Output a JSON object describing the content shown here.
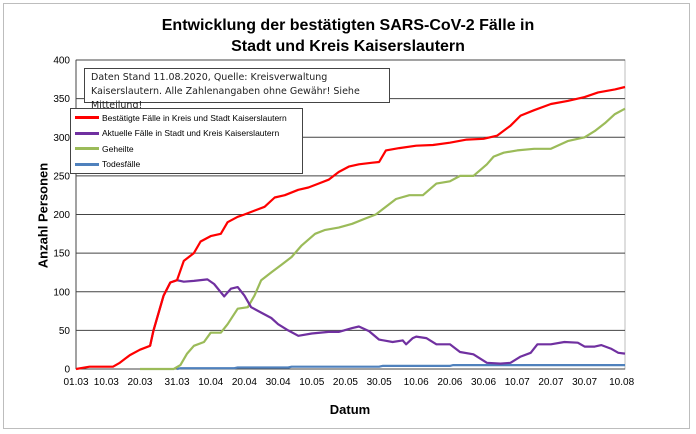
{
  "chart_data": {
    "type": "line",
    "title": "Entwicklung der bestätigten SARS-CoV-2 Fälle in Stadt und Kreis Kaiserslautern",
    "title_lines": [
      "Entwicklung der bestätigten SARS-CoV-2 Fälle in",
      "Stadt und Kreis Kaiserslautern"
    ],
    "annotation_lines": [
      "Daten Stand 11.08.2020, Quelle: Kreisverwaltung",
      "Kaiserslautern. Alle Zahlenangaben ohne Gewähr! Siehe Mitteilung!"
    ],
    "xlabel": "Datum",
    "ylabel": "Anzahl Personen",
    "ylim": [
      0,
      400
    ],
    "yticks": [
      0,
      50,
      100,
      150,
      200,
      250,
      300,
      350,
      400
    ],
    "xticks": [
      "01.03",
      "10.03",
      "20.03",
      "31.03",
      "10.04",
      "20.04",
      "30.04",
      "10.05",
      "20.05",
      "30.05",
      "10.06",
      "20.06",
      "30.06",
      "10.07",
      "20.07",
      "30.07",
      "10.08"
    ],
    "xlim": [
      "01.03",
      "11.08"
    ],
    "grid": "horizontal",
    "legend_position": "top-left",
    "series": [
      {
        "name": "Bestätigte Fälle in Kreis und Stadt Kaiserslautern",
        "color": "#ff0000",
        "points": [
          [
            "01.03",
            0
          ],
          [
            "05.03",
            3
          ],
          [
            "12.03",
            3
          ],
          [
            "14.03",
            8
          ],
          [
            "17.03",
            18
          ],
          [
            "20.03",
            25
          ],
          [
            "23.03",
            30
          ],
          [
            "24.03",
            50
          ],
          [
            "27.03",
            95
          ],
          [
            "29.03",
            112
          ],
          [
            "31.03",
            115
          ],
          [
            "02.04",
            140
          ],
          [
            "05.04",
            150
          ],
          [
            "07.04",
            165
          ],
          [
            "10.04",
            172
          ],
          [
            "13.04",
            175
          ],
          [
            "15.04",
            190
          ],
          [
            "18.04",
            197
          ],
          [
            "20.04",
            200
          ],
          [
            "23.04",
            205
          ],
          [
            "26.04",
            210
          ],
          [
            "29.04",
            222
          ],
          [
            "02.05",
            225
          ],
          [
            "06.05",
            232
          ],
          [
            "09.05",
            235
          ],
          [
            "12.05",
            240
          ],
          [
            "15.05",
            245
          ],
          [
            "18.05",
            255
          ],
          [
            "21.05",
            262
          ],
          [
            "24.05",
            265
          ],
          [
            "28.05",
            267
          ],
          [
            "30.05",
            268
          ],
          [
            "01.06",
            283
          ],
          [
            "05.06",
            286
          ],
          [
            "10.06",
            289
          ],
          [
            "15.06",
            290
          ],
          [
            "20.06",
            293
          ],
          [
            "25.06",
            297
          ],
          [
            "30.06",
            298
          ],
          [
            "04.07",
            302
          ],
          [
            "08.07",
            315
          ],
          [
            "11.07",
            328
          ],
          [
            "15.07",
            335
          ],
          [
            "20.07",
            343
          ],
          [
            "25.07",
            347
          ],
          [
            "30.07",
            352
          ],
          [
            "03.08",
            358
          ],
          [
            "08.08",
            362
          ],
          [
            "11.08",
            365
          ]
        ]
      },
      {
        "name": "Aktuelle Fälle in Stadt und Kreis Kaiserslautern",
        "color": "#7030a0",
        "points": [
          [
            "23.03",
            30
          ],
          [
            "24.03",
            50
          ],
          [
            "27.03",
            95
          ],
          [
            "29.03",
            112
          ],
          [
            "31.03",
            115
          ],
          [
            "02.04",
            113
          ],
          [
            "05.04",
            114
          ],
          [
            "09.04",
            116
          ],
          [
            "11.04",
            110
          ],
          [
            "14.04",
            94
          ],
          [
            "16.04",
            104
          ],
          [
            "18.04",
            106
          ],
          [
            "20.04",
            95
          ],
          [
            "22.04",
            80
          ],
          [
            "25.04",
            73
          ],
          [
            "28.04",
            66
          ],
          [
            "30.04",
            58
          ],
          [
            "03.05",
            50
          ],
          [
            "06.05",
            43
          ],
          [
            "10.05",
            46
          ],
          [
            "15.05",
            48
          ],
          [
            "18.05",
            48
          ],
          [
            "22.05",
            53
          ],
          [
            "24.05",
            55
          ],
          [
            "27.05",
            49
          ],
          [
            "30.05",
            38
          ],
          [
            "03.06",
            35
          ],
          [
            "06.06",
            37
          ],
          [
            "07.06",
            32
          ],
          [
            "09.06",
            40
          ],
          [
            "10.06",
            42
          ],
          [
            "13.06",
            40
          ],
          [
            "16.06",
            32
          ],
          [
            "20.06",
            32
          ],
          [
            "23.06",
            22
          ],
          [
            "27.06",
            19
          ],
          [
            "01.07",
            8
          ],
          [
            "05.07",
            7
          ],
          [
            "08.07",
            8
          ],
          [
            "11.07",
            16
          ],
          [
            "14.07",
            21
          ],
          [
            "16.07",
            32
          ],
          [
            "20.07",
            32
          ],
          [
            "24.07",
            35
          ],
          [
            "28.07",
            34
          ],
          [
            "30.07",
            29
          ],
          [
            "02.08",
            29
          ],
          [
            "04.08",
            31
          ],
          [
            "07.08",
            26
          ],
          [
            "09.08",
            21
          ],
          [
            "11.08",
            20
          ]
        ]
      },
      {
        "name": "Geheilte",
        "color": "#9bbb59",
        "points": [
          [
            "20.03",
            0
          ],
          [
            "30.03",
            0
          ],
          [
            "01.04",
            5
          ],
          [
            "03.04",
            20
          ],
          [
            "05.04",
            30
          ],
          [
            "08.04",
            35
          ],
          [
            "10.04",
            47
          ],
          [
            "13.04",
            47
          ],
          [
            "15.04",
            58
          ],
          [
            "18.04",
            78
          ],
          [
            "21.04",
            80
          ],
          [
            "23.04",
            95
          ],
          [
            "25.04",
            115
          ],
          [
            "28.04",
            125
          ],
          [
            "01.05",
            135
          ],
          [
            "04.05",
            145
          ],
          [
            "07.05",
            160
          ],
          [
            "11.05",
            175
          ],
          [
            "14.05",
            180
          ],
          [
            "18.05",
            183
          ],
          [
            "22.05",
            188
          ],
          [
            "26.05",
            195
          ],
          [
            "29.05",
            200
          ],
          [
            "01.06",
            210
          ],
          [
            "04.06",
            220
          ],
          [
            "08.06",
            225
          ],
          [
            "12.06",
            225
          ],
          [
            "16.06",
            240
          ],
          [
            "20.06",
            243
          ],
          [
            "23.06",
            250
          ],
          [
            "27.06",
            250
          ],
          [
            "01.07",
            265
          ],
          [
            "03.07",
            275
          ],
          [
            "06.07",
            280
          ],
          [
            "10.07",
            283
          ],
          [
            "15.07",
            285
          ],
          [
            "20.07",
            285
          ],
          [
            "25.07",
            295
          ],
          [
            "30.07",
            300
          ],
          [
            "02.08",
            308
          ],
          [
            "05.08",
            318
          ],
          [
            "08.08",
            330
          ],
          [
            "11.08",
            337
          ]
        ]
      },
      {
        "name": "Todesfälle",
        "color": "#4f81bd",
        "points": [
          [
            "31.03",
            0
          ],
          [
            "01.04",
            1
          ],
          [
            "17.04",
            1
          ],
          [
            "18.04",
            2
          ],
          [
            "03.05",
            2
          ],
          [
            "04.05",
            3
          ],
          [
            "30.05",
            3
          ],
          [
            "31.05",
            4
          ],
          [
            "20.06",
            4
          ],
          [
            "21.06",
            5
          ],
          [
            "11.08",
            5
          ]
        ]
      }
    ]
  }
}
